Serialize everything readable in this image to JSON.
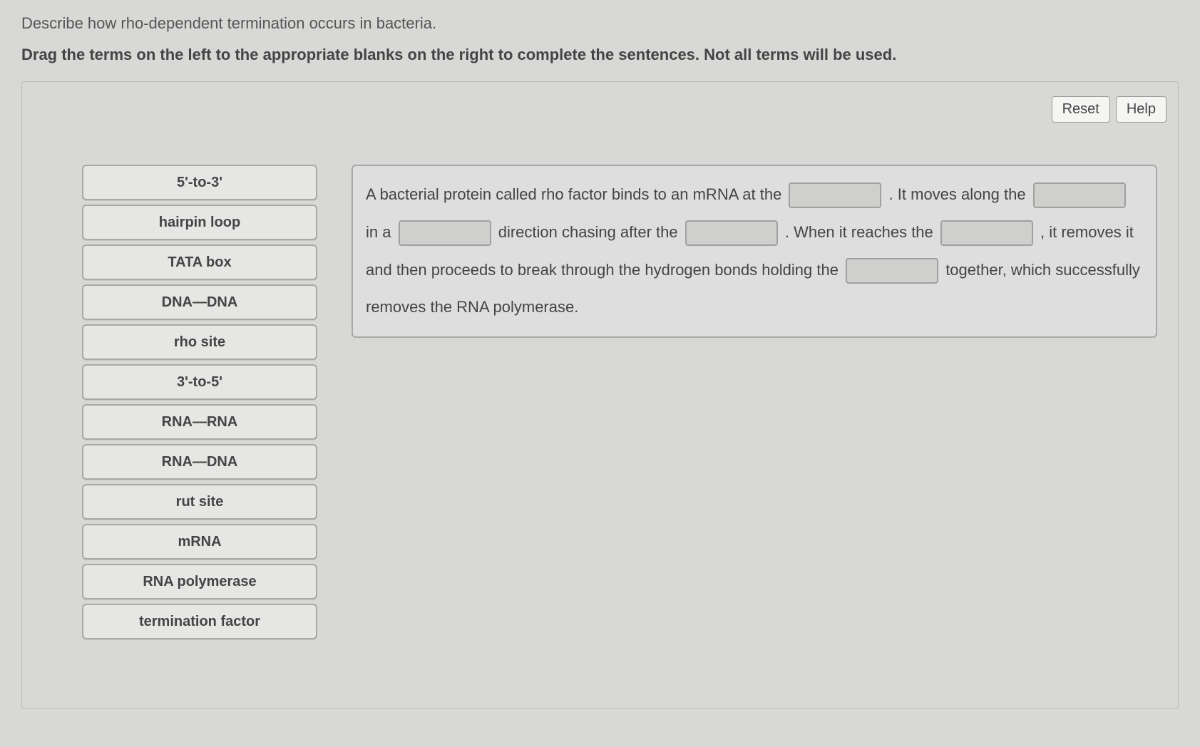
{
  "question": "Describe how rho-dependent termination occurs in bacteria.",
  "instruction": "Drag the terms on the left to the appropriate blanks on the right to complete the sentences. Not all terms will be used.",
  "buttons": {
    "reset": "Reset",
    "help": "Help"
  },
  "terms": [
    "5'-to-3'",
    "hairpin loop",
    "TATA box",
    "DNA—DNA",
    "rho site",
    "3'-to-5'",
    "RNA—RNA",
    "RNA—DNA",
    "rut site",
    "mRNA",
    "RNA polymerase",
    "termination factor"
  ],
  "sentence": {
    "seg1": "A bacterial protein called rho factor binds to an mRNA at the ",
    "seg2": " . It moves along the ",
    "seg3": " in a ",
    "seg4": " direction chasing after the ",
    "seg5": " . When it reaches the ",
    "seg6": " , it removes it and then proceeds to break through the hydrogen bonds holding the ",
    "seg7": " together, which successfully removes the RNA polymerase."
  }
}
